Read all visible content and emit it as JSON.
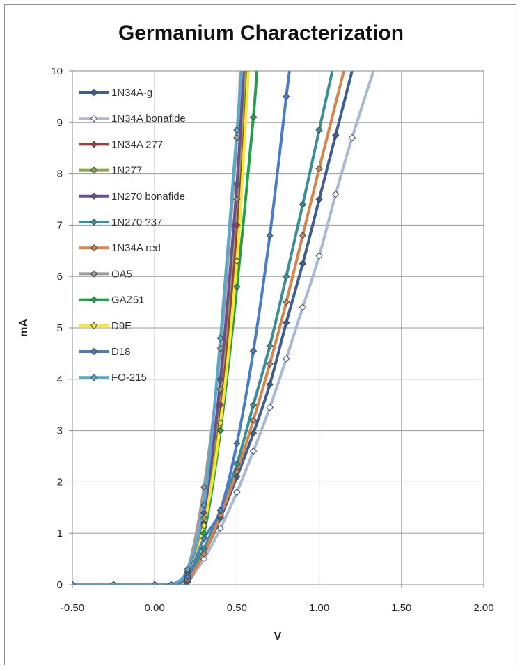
{
  "chart_data": {
    "type": "line",
    "title": "Germanium Characterization",
    "xlabel": "V",
    "ylabel": "mA",
    "xlim": [
      -0.5,
      2.0
    ],
    "ylim": [
      0,
      10
    ],
    "grid": true,
    "legend_position": "top-left inside",
    "x_ticks": [
      "-0.50",
      "0.00",
      "0.50",
      "1.00",
      "1.50",
      "2.00"
    ],
    "y_ticks": [
      "0",
      "1",
      "2",
      "3",
      "4",
      "5",
      "6",
      "7",
      "8",
      "9",
      "10"
    ],
    "series": [
      {
        "name": "1N34A-g",
        "color": "#3d5f8f",
        "marker": "filled",
        "points": [
          [
            -0.5,
            0
          ],
          [
            -0.25,
            0
          ],
          [
            0,
            0
          ],
          [
            0.1,
            0
          ],
          [
            0.2,
            0.05
          ],
          [
            0.3,
            0.6
          ],
          [
            0.4,
            1.3
          ],
          [
            0.5,
            2.1
          ],
          [
            0.6,
            2.95
          ],
          [
            0.7,
            3.9
          ],
          [
            0.8,
            5.1
          ],
          [
            0.9,
            6.25
          ],
          [
            1.0,
            7.5
          ],
          [
            1.1,
            8.75
          ],
          [
            1.2,
            10
          ]
        ]
      },
      {
        "name": "1N34A bonafide",
        "color": "#a9b8d4",
        "marker": "open",
        "points": [
          [
            -0.5,
            0
          ],
          [
            -0.25,
            0
          ],
          [
            0,
            0
          ],
          [
            0.1,
            0
          ],
          [
            0.2,
            0.1
          ],
          [
            0.3,
            0.5
          ],
          [
            0.4,
            1.1
          ],
          [
            0.5,
            1.8
          ],
          [
            0.6,
            2.6
          ],
          [
            0.7,
            3.45
          ],
          [
            0.8,
            4.4
          ],
          [
            0.9,
            5.4
          ],
          [
            1.0,
            6.4
          ],
          [
            1.1,
            7.6
          ],
          [
            1.2,
            8.7
          ],
          [
            1.33,
            10
          ]
        ]
      },
      {
        "name": "1N34A 277",
        "color": "#a0403c",
        "marker": "filled",
        "points": [
          [
            -0.5,
            0
          ],
          [
            -0.25,
            0
          ],
          [
            0,
            0
          ],
          [
            0.1,
            0
          ],
          [
            0.2,
            0.2
          ],
          [
            0.3,
            1.2
          ],
          [
            0.4,
            3.5
          ],
          [
            0.5,
            7.0
          ],
          [
            0.56,
            10
          ]
        ]
      },
      {
        "name": "1N277",
        "color": "#8ea64a",
        "marker": "filled",
        "points": [
          [
            -0.5,
            0
          ],
          [
            -0.25,
            0
          ],
          [
            0,
            0
          ],
          [
            0.1,
            0
          ],
          [
            0.2,
            0.2
          ],
          [
            0.3,
            1.3
          ],
          [
            0.4,
            3.8
          ],
          [
            0.5,
            7.5
          ],
          [
            0.55,
            10
          ]
        ]
      },
      {
        "name": "1N270 bonafide",
        "color": "#6c4c93",
        "marker": "filled",
        "points": [
          [
            -0.5,
            0
          ],
          [
            -0.25,
            0
          ],
          [
            0,
            0
          ],
          [
            0.1,
            0
          ],
          [
            0.2,
            0.25
          ],
          [
            0.3,
            1.4
          ],
          [
            0.4,
            4.0
          ],
          [
            0.5,
            7.8
          ],
          [
            0.54,
            10
          ]
        ]
      },
      {
        "name": "1N270 ?37",
        "color": "#3a8f94",
        "marker": "filled",
        "points": [
          [
            -0.5,
            0
          ],
          [
            -0.25,
            0
          ],
          [
            0,
            0
          ],
          [
            0.1,
            0
          ],
          [
            0.2,
            0.1
          ],
          [
            0.3,
            0.7
          ],
          [
            0.4,
            1.45
          ],
          [
            0.5,
            2.35
          ],
          [
            0.6,
            3.5
          ],
          [
            0.7,
            4.65
          ],
          [
            0.8,
            6.0
          ],
          [
            0.9,
            7.4
          ],
          [
            1.0,
            8.85
          ],
          [
            1.08,
            10
          ]
        ]
      },
      {
        "name": "1N34A red",
        "color": "#d8834a",
        "marker": "filled",
        "points": [
          [
            -0.5,
            0
          ],
          [
            -0.25,
            0
          ],
          [
            0,
            0
          ],
          [
            0.1,
            0
          ],
          [
            0.2,
            0.1
          ],
          [
            0.3,
            0.6
          ],
          [
            0.4,
            1.35
          ],
          [
            0.5,
            2.2
          ],
          [
            0.6,
            3.2
          ],
          [
            0.7,
            4.3
          ],
          [
            0.8,
            5.5
          ],
          [
            0.9,
            6.8
          ],
          [
            1.0,
            8.1
          ],
          [
            1.15,
            10
          ]
        ]
      },
      {
        "name": "OA5",
        "color": "#9c9c9c",
        "marker": "filled",
        "points": [
          [
            -0.5,
            0
          ],
          [
            -0.25,
            0
          ],
          [
            0,
            0
          ],
          [
            0.1,
            0
          ],
          [
            0.2,
            0.3
          ],
          [
            0.3,
            1.9
          ],
          [
            0.4,
            4.6
          ],
          [
            0.5,
            8.7
          ],
          [
            0.52,
            10
          ]
        ]
      },
      {
        "name": "GAZ51",
        "color": "#22a04a",
        "marker": "filled",
        "points": [
          [
            -0.5,
            0
          ],
          [
            -0.25,
            0
          ],
          [
            0,
            0
          ],
          [
            0.1,
            0
          ],
          [
            0.2,
            0.15
          ],
          [
            0.3,
            1.0
          ],
          [
            0.4,
            3.0
          ],
          [
            0.5,
            5.8
          ],
          [
            0.6,
            9.1
          ],
          [
            0.62,
            10
          ]
        ]
      },
      {
        "name": "D9E",
        "color": "#f2ea2a",
        "marker": "filled",
        "points": [
          [
            -0.5,
            0
          ],
          [
            -0.25,
            0
          ],
          [
            0,
            0
          ],
          [
            0.1,
            0
          ],
          [
            0.2,
            0.15
          ],
          [
            0.3,
            1.15
          ],
          [
            0.4,
            3.15
          ],
          [
            0.5,
            6.3
          ],
          [
            0.57,
            10
          ]
        ]
      },
      {
        "name": "D18",
        "color": "#4a7cc8",
        "marker": "filled",
        "points": [
          [
            -0.5,
            0
          ],
          [
            -0.25,
            0
          ],
          [
            0,
            0
          ],
          [
            0.1,
            0
          ],
          [
            0.2,
            0.15
          ],
          [
            0.3,
            0.9
          ],
          [
            0.4,
            1.45
          ],
          [
            0.5,
            2.75
          ],
          [
            0.6,
            4.55
          ],
          [
            0.7,
            6.8
          ],
          [
            0.8,
            9.5
          ],
          [
            0.82,
            10
          ]
        ]
      },
      {
        "name": "FO-215",
        "color": "#5aa8c8",
        "marker": "filled",
        "points": [
          [
            -0.5,
            0
          ],
          [
            -0.25,
            0
          ],
          [
            0,
            0
          ],
          [
            0.1,
            0
          ],
          [
            0.2,
            0.3
          ],
          [
            0.3,
            1.55
          ],
          [
            0.4,
            4.8
          ],
          [
            0.5,
            8.85
          ],
          [
            0.53,
            10
          ]
        ]
      }
    ]
  }
}
